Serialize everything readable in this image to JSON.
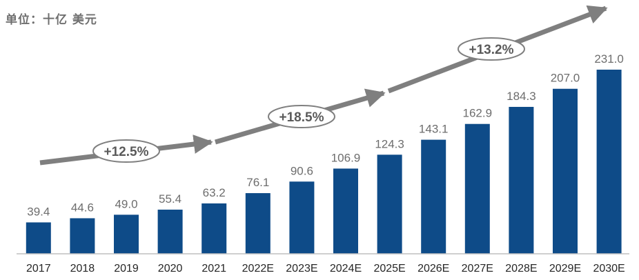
{
  "unit_label": "单位：十亿 美元",
  "colors": {
    "bar": "#0e4b88",
    "arrow": "#7f7f7f",
    "axis": "#bfbfbf",
    "value_text": "#6d6d6d",
    "tick_text": "#262626"
  },
  "chart_data": {
    "type": "bar",
    "title": "",
    "xlabel": "",
    "ylabel": "",
    "unit": "单位：十亿 美元",
    "categories": [
      "2017",
      "2018",
      "2019",
      "2020",
      "2021",
      "2022E",
      "2023E",
      "2024E",
      "2025E",
      "2026E",
      "2027E",
      "2028E",
      "2029E",
      "2030E"
    ],
    "values": [
      39.4,
      44.6,
      49.0,
      55.4,
      63.2,
      76.1,
      90.6,
      106.9,
      124.3,
      143.1,
      162.9,
      184.3,
      207.0,
      231.0
    ],
    "value_labels": [
      "39.4",
      "44.6",
      "49.0",
      "55.4",
      "63.2",
      "76.1",
      "90.6",
      "106.9",
      "124.3",
      "143.1",
      "162.9",
      "184.3",
      "207.0",
      "231.0"
    ],
    "ylim": [
      0,
      250
    ],
    "grid": false,
    "legend": "none",
    "annotations": [
      {
        "label": "+12.5%",
        "from": "2017",
        "to": "2021"
      },
      {
        "label": "+18.5%",
        "from": "2022E",
        "to": "2025E"
      },
      {
        "label": "+13.2%",
        "from": "2026E",
        "to": "2030E"
      }
    ]
  }
}
